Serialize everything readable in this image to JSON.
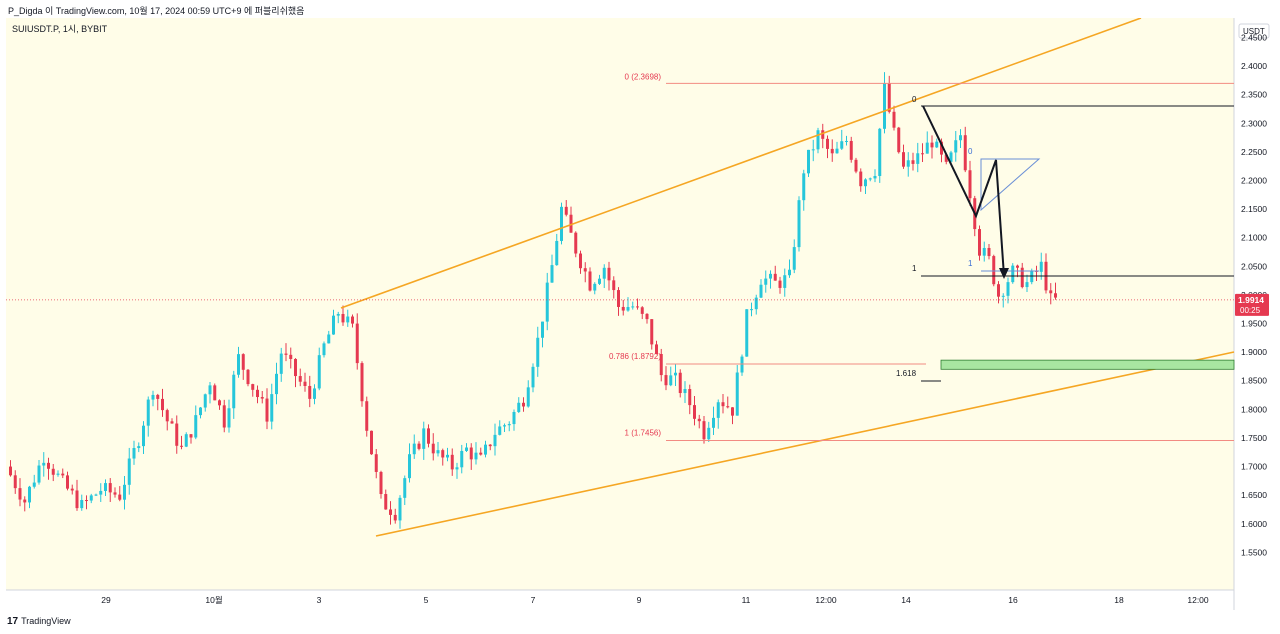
{
  "header": {
    "publisher_line": "P_Digda 이 TradingView.com, 10월 17, 2024 00:59 UTC+9 에 퍼블리쉬했음",
    "symbol_line": "SUIUSDT.P, 1시, BYBIT"
  },
  "footer": {
    "brand": "TradingView",
    "logo_glyph": "17"
  },
  "colors": {
    "chart_bg": "#fffde8",
    "bull": "#26c6da",
    "bear": "#e53950",
    "channel": "#f5a623",
    "fib": "#f28b82",
    "target_zone": "#a8e6a1",
    "price_badge": "#e53950"
  },
  "chart_data": {
    "type": "candlestick",
    "symbol": "SUIUSDT.P",
    "timeframe": "1시",
    "exchange": "BYBIT",
    "price_unit": "USDT",
    "ylim": [
      1.5,
      2.47
    ],
    "yticks": [
      "2.4500",
      "2.4000",
      "2.3500",
      "2.3000",
      "2.2500",
      "2.2000",
      "2.1500",
      "2.1000",
      "2.0500",
      "2.0000",
      "1.9500",
      "1.9000",
      "1.8500",
      "1.8000",
      "1.7500",
      "1.7000",
      "1.6500",
      "1.6000",
      "1.5500"
    ],
    "x_ticks": [
      "29",
      "10월",
      "3",
      "5",
      "7",
      "9",
      "11",
      "12:00",
      "14",
      "16",
      "18",
      "12:00"
    ],
    "current_price": "1.9914",
    "countdown": "00:25",
    "price_path": [
      [
        0,
        1.7
      ],
      [
        4,
        1.64
      ],
      [
        8,
        1.72
      ],
      [
        12,
        1.67
      ],
      [
        16,
        1.63
      ],
      [
        20,
        1.66
      ],
      [
        24,
        1.65
      ],
      [
        28,
        1.75
      ],
      [
        31,
        1.84
      ],
      [
        34,
        1.78
      ],
      [
        37,
        1.73
      ],
      [
        40,
        1.78
      ],
      [
        43,
        1.85
      ],
      [
        46,
        1.78
      ],
      [
        49,
        1.89
      ],
      [
        52,
        1.84
      ],
      [
        55,
        1.79
      ],
      [
        58,
        1.9
      ],
      [
        61,
        1.86
      ],
      [
        64,
        1.82
      ],
      [
        67,
        1.91
      ],
      [
        70,
        1.97
      ],
      [
        73,
        1.94
      ],
      [
        76,
        1.77
      ],
      [
        79,
        1.64
      ],
      [
        82,
        1.62
      ],
      [
        85,
        1.71
      ],
      [
        88,
        1.76
      ],
      [
        91,
        1.72
      ],
      [
        94,
        1.7
      ],
      [
        97,
        1.73
      ],
      [
        100,
        1.71
      ],
      [
        103,
        1.76
      ],
      [
        106,
        1.78
      ],
      [
        109,
        1.82
      ],
      [
        112,
        1.92
      ],
      [
        115,
        2.05
      ],
      [
        117,
        2.15
      ],
      [
        120,
        2.08
      ],
      [
        123,
        2.02
      ],
      [
        126,
        2.05
      ],
      [
        129,
        1.98
      ],
      [
        132,
        1.98
      ],
      [
        135,
        1.95
      ],
      [
        138,
        1.86
      ],
      [
        141,
        1.85
      ],
      [
        144,
        1.81
      ],
      [
        147,
        1.76
      ],
      [
        150,
        1.82
      ],
      [
        153,
        1.8
      ],
      [
        156,
        1.96
      ],
      [
        159,
        2.03
      ],
      [
        162,
        2.02
      ],
      [
        165,
        2.03
      ],
      [
        168,
        2.22
      ],
      [
        171,
        2.28
      ],
      [
        174,
        2.24
      ],
      [
        177,
        2.27
      ],
      [
        180,
        2.2
      ],
      [
        183,
        2.22
      ],
      [
        185,
        2.36
      ],
      [
        187,
        2.28
      ],
      [
        189,
        2.22
      ],
      [
        192,
        2.24
      ],
      [
        195,
        2.27
      ],
      [
        198,
        2.22
      ],
      [
        201,
        2.28
      ],
      [
        203,
        2.18
      ],
      [
        205,
        2.08
      ],
      [
        207,
        2.06
      ],
      [
        209,
        2.0
      ],
      [
        212,
        2.04
      ],
      [
        215,
        2.02
      ],
      [
        218,
        2.05
      ],
      [
        220,
        1.99
      ]
    ],
    "annotations": {
      "fib_top": {
        "label": "0 (2.3698)",
        "value": 2.3698
      },
      "fib_mid": {
        "label": "0.786 (1.8792)",
        "value": 1.8792
      },
      "fib_bottom": {
        "label": "1 (1.7456)",
        "value": 1.7456
      },
      "black_top_label": "0",
      "black_one_label": "1",
      "black_ext_label": "1.618",
      "blue_top_label": "0",
      "blue_one_label": "1",
      "zone_range": [
        1.87,
        1.886
      ]
    }
  }
}
